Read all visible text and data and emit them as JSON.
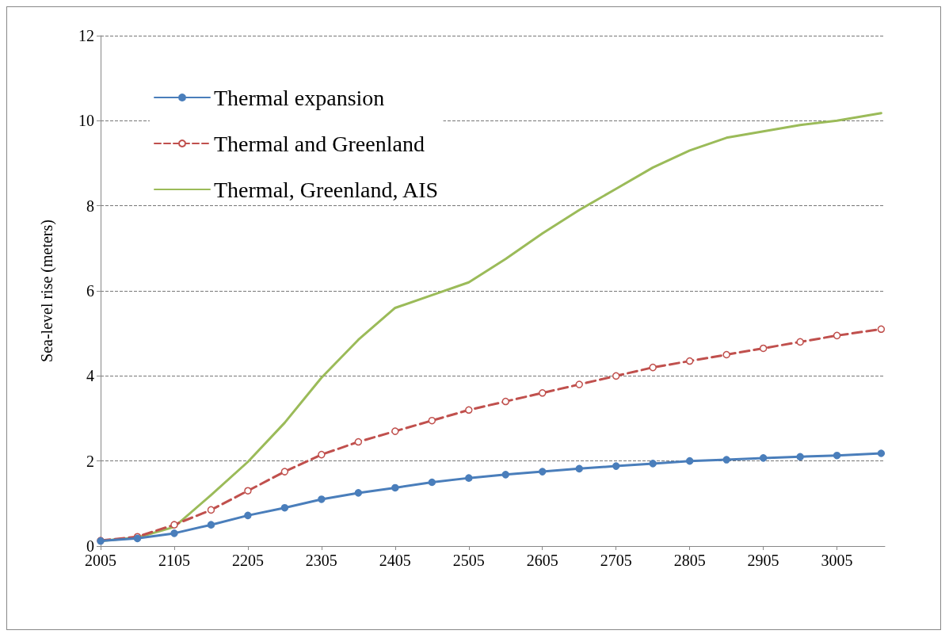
{
  "chart_data": {
    "type": "line",
    "ylabel": "Sea-level rise (meters)",
    "x": [
      2005,
      2055,
      2105,
      2155,
      2205,
      2255,
      2305,
      2355,
      2405,
      2455,
      2505,
      2555,
      2605,
      2655,
      2705,
      2755,
      2805,
      2855,
      2905,
      2955,
      3005,
      3065
    ],
    "xlim": [
      2005,
      3070
    ],
    "xticks": [
      2005,
      2105,
      2205,
      2305,
      2405,
      2505,
      2605,
      2705,
      2805,
      2905,
      3005
    ],
    "ylim": [
      0,
      12
    ],
    "yticks": [
      0,
      2,
      4,
      6,
      8,
      10,
      12
    ],
    "grid": "y",
    "legend": "top left",
    "series": [
      {
        "name": "Thermal expansion",
        "color": "#4a7ebb",
        "marker": "circle",
        "line_style": "solid",
        "values": [
          0.12,
          0.18,
          0.3,
          0.5,
          0.72,
          0.9,
          1.1,
          1.25,
          1.37,
          1.5,
          1.6,
          1.68,
          1.75,
          1.82,
          1.88,
          1.94,
          2.0,
          2.03,
          2.07,
          2.1,
          2.13,
          2.18
        ]
      },
      {
        "name": "Thermal and Greenland",
        "color": "#c0504d",
        "marker": "circle",
        "line_style": "dashed",
        "values": [
          0.13,
          0.22,
          0.5,
          0.85,
          1.3,
          1.75,
          2.15,
          2.45,
          2.7,
          2.95,
          3.2,
          3.4,
          3.6,
          3.8,
          4.0,
          4.2,
          4.35,
          4.5,
          4.65,
          4.8,
          4.95,
          5.1
        ]
      },
      {
        "name": "Thermal, Greenland, AIS",
        "color": "#9bbb59",
        "marker": "none",
        "line_style": "solid",
        "values": [
          0.12,
          0.2,
          0.45,
          1.2,
          1.98,
          2.9,
          3.96,
          4.85,
          5.6,
          5.9,
          6.2,
          6.75,
          7.35,
          7.9,
          8.4,
          8.9,
          9.3,
          9.6,
          9.75,
          9.9,
          10.0,
          10.18
        ]
      }
    ]
  }
}
